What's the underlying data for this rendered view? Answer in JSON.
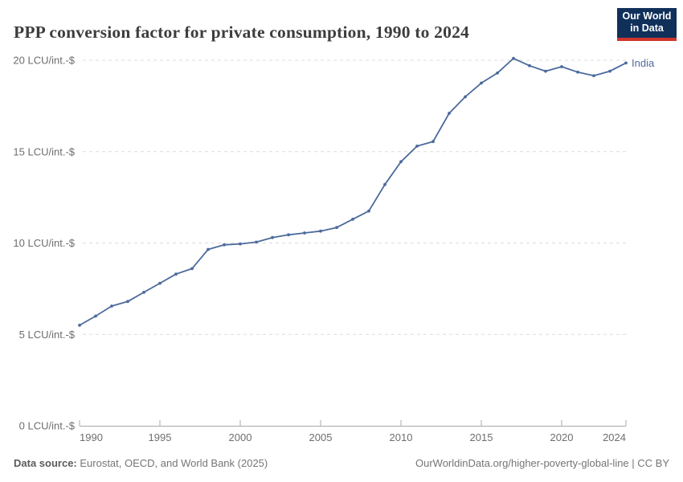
{
  "header": {
    "title": "PPP conversion factor for private consumption, 1990 to 2024",
    "logo": {
      "line1": "Our World",
      "line2": "in Data",
      "bg_color": "#10305a",
      "accent_color": "#d0342c"
    }
  },
  "chart_data": {
    "type": "line",
    "title": "PPP conversion factor for private consumption, 1990 to 2024",
    "unit": "LCU/int.-$",
    "xlabel": "",
    "ylabel": "LCU/int.-$",
    "xlim": [
      1990,
      2024
    ],
    "ylim": [
      0,
      20
    ],
    "xticks": [
      1990,
      1995,
      2000,
      2005,
      2010,
      2015,
      2020,
      2024
    ],
    "yticks": [
      0,
      5,
      10,
      15,
      20
    ],
    "grid": "horizontal-dashed",
    "legend_position": "end-of-line",
    "x": [
      1990,
      1991,
      1992,
      1993,
      1994,
      1995,
      1996,
      1997,
      1998,
      1999,
      2000,
      2001,
      2002,
      2003,
      2004,
      2005,
      2006,
      2007,
      2008,
      2009,
      2010,
      2011,
      2012,
      2013,
      2014,
      2015,
      2016,
      2017,
      2018,
      2019,
      2020,
      2021,
      2022,
      2023,
      2024
    ],
    "series": [
      {
        "name": "India",
        "color": "#4c6a9c",
        "values": [
          5.5,
          6.0,
          6.55,
          6.8,
          7.3,
          7.8,
          8.3,
          8.6,
          9.65,
          9.9,
          9.95,
          10.05,
          10.3,
          10.45,
          10.55,
          10.65,
          10.85,
          11.3,
          11.75,
          13.2,
          14.45,
          15.3,
          15.55,
          17.1,
          18.0,
          18.75,
          19.3,
          20.1,
          19.7,
          19.4,
          19.65,
          19.35,
          19.15,
          19.4,
          19.85
        ]
      }
    ]
  },
  "footer": {
    "source_label": "Data source:",
    "source_text": " Eurostat, OECD, and World Bank (2025)",
    "attribution": "OurWorldinData.org/higher-poverty-global-line | CC BY"
  }
}
